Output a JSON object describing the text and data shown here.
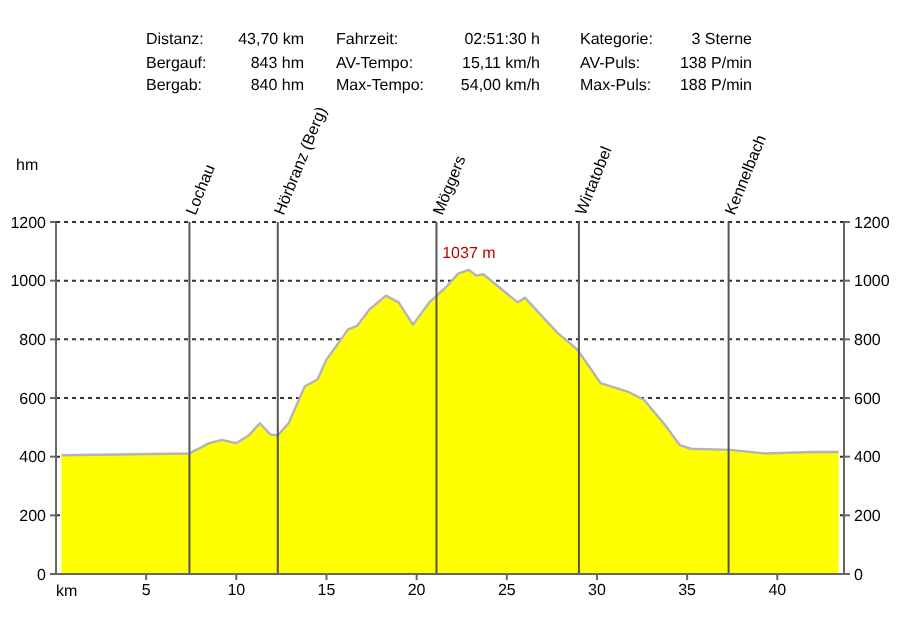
{
  "chart_data": {
    "type": "area",
    "xlabel": "km",
    "ylabel": "hm",
    "annotations": [
      "Distanz:",
      "43,70 km",
      "Fahrzeit:",
      "02:51:30 h",
      "Kategorie:",
      "3 Sterne",
      "Bergauf:",
      "843 hm",
      "AV-Tempo:",
      "15,11 km/h",
      "AV-Puls:",
      "138 P/min",
      "Bergab:",
      "840 hm",
      "Max-Tempo:",
      "54,00 km/h",
      "Max-Puls:",
      "188 P/min",
      {
        "text": "1037 m",
        "x": 22.9,
        "y": 1037
      }
    ],
    "series": [
      {
        "color": "#ffff00",
        "x": [
          0.3,
          7.4,
          8.5,
          9.2,
          10,
          10.7,
          11.3,
          11.9,
          12.3,
          12.9,
          13.8,
          14.5,
          15,
          16.2,
          16.7,
          17.4,
          18.3,
          19,
          19.8,
          20.7,
          21.6,
          22.3,
          22.9,
          23.3,
          23.7,
          25.6,
          26,
          27.8,
          28.9,
          30.2,
          31.7,
          32.6,
          33.7,
          34.6,
          35.2,
          37.4,
          39.3,
          41.9,
          43.4
        ],
        "values": [
          405,
          411,
          446,
          457,
          446,
          473,
          514,
          475,
          473,
          514,
          640,
          663,
          731,
          834,
          846,
          903,
          949,
          926,
          850,
          926,
          976,
          1024,
          1037,
          1017,
          1022,
          926,
          942,
          823,
          766,
          651,
          622,
          594,
          514,
          439,
          427,
          423,
          411,
          416,
          416
        ]
      }
    ],
    "xlim": [
      0,
      43.7
    ],
    "xticks": [
      5,
      10,
      15,
      20,
      25,
      30,
      35,
      40
    ],
    "ylim": [
      0,
      1200
    ],
    "yticks": [
      0,
      200,
      400,
      600,
      800,
      1000,
      1200
    ],
    "y2lim": [
      0,
      1200
    ],
    "y2ticks": [
      0,
      200,
      400,
      600,
      800,
      1000,
      1200
    ],
    "grid": "y",
    "ref_lines": [
      {
        "axis": "x",
        "value": 7.4,
        "label": "Lochau"
      },
      {
        "axis": "x",
        "value": 12.3,
        "label": "Hörbranz (Berg)"
      },
      {
        "axis": "x",
        "value": 21.1,
        "label": "Möggers"
      },
      {
        "axis": "x",
        "value": 29.0,
        "label": "Wirtatobel"
      },
      {
        "axis": "x",
        "value": 37.3,
        "label": "Kennelbach"
      }
    ]
  }
}
